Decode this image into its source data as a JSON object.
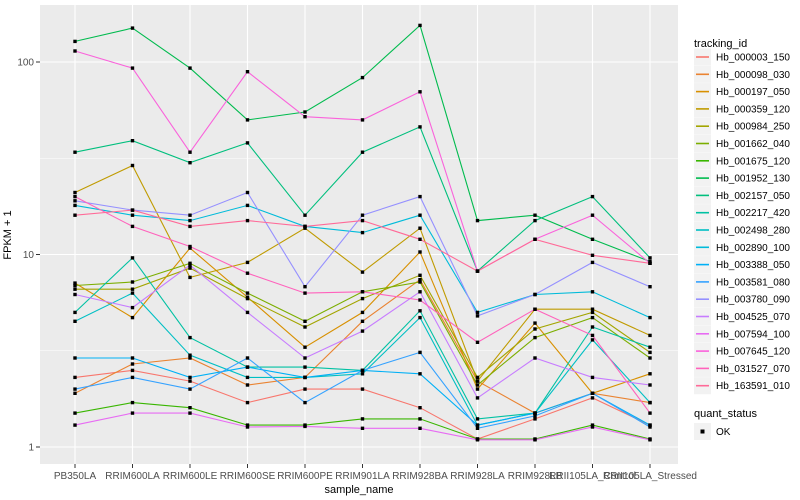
{
  "figure": {
    "background": "#FFFFFF",
    "panel_background": "#EBEBEB",
    "grid_color": "#FFFFFF",
    "axis_text_color": "#4D4D4D",
    "marker_color": "#000000",
    "legend_key_background": "#F2F2F2"
  },
  "axes": {
    "x_title": "sample_name",
    "y_title": "FPKM + 1",
    "y_tick_labels": [
      "1",
      "10",
      "100"
    ]
  },
  "legend": {
    "tracking_title": "tracking_id",
    "quant_title": "quant_status",
    "quant_ok_label": "OK"
  },
  "chart_data": {
    "type": "line",
    "y_scale": "log10",
    "ylim": [
      0.82,
      197
    ],
    "y_ticks": [
      1,
      10,
      100
    ],
    "y_minor_ticks": [
      3.162,
      31.62
    ],
    "grid": true,
    "legend_position": "right",
    "title": "",
    "xlabel": "sample_name",
    "ylabel": "FPKM + 1",
    "categories": [
      "PB350LA",
      "RRIM600LA",
      "RRIM600LE",
      "RRIM600SE",
      "RRIM600PE",
      "RRIM901LA",
      "RRIM928BA",
      "RRIM928LA",
      "RRIM928LB",
      "RRII105LA_Control",
      "RRII105LA_Stressed"
    ],
    "quant_status": "OK",
    "series": [
      {
        "name": "Hb_000003_150",
        "color": "#F8766D",
        "values": [
          2.3,
          2.5,
          2.2,
          1.7,
          2.0,
          2.0,
          1.6,
          1.1,
          1.4,
          1.8,
          1.3
        ]
      },
      {
        "name": "Hb_000098_030",
        "color": "#EA8331",
        "values": [
          1.9,
          2.7,
          2.9,
          2.1,
          2.3,
          4.5,
          7.4,
          2.2,
          1.5,
          1.9,
          1.7
        ]
      },
      {
        "name": "Hb_000197_050",
        "color": "#D89000",
        "values": [
          7.1,
          4.7,
          10.8,
          6.0,
          3.3,
          5.0,
          10.3,
          2.0,
          4.4,
          1.9,
          2.4
        ]
      },
      {
        "name": "Hb_000359_120",
        "color": "#C09B00",
        "values": [
          21,
          29,
          7.6,
          9.1,
          13.7,
          8.1,
          13.7,
          2.2,
          5.2,
          5.2,
          3.8
        ]
      },
      {
        "name": "Hb_000984_250",
        "color": "#A3A500",
        "values": [
          6.6,
          6.6,
          8.5,
          5.9,
          4.2,
          5.9,
          7.8,
          2.3,
          4.1,
          5.0,
          3.1
        ]
      },
      {
        "name": "Hb_001662_040",
        "color": "#7CAE00",
        "values": [
          6.9,
          7.2,
          9.0,
          6.3,
          4.5,
          6.4,
          7.2,
          2.1,
          3.7,
          4.7,
          2.9
        ]
      },
      {
        "name": "Hb_001675_120",
        "color": "#39B600",
        "values": [
          1.5,
          1.7,
          1.6,
          1.3,
          1.3,
          1.4,
          1.4,
          1.1,
          1.1,
          1.3,
          1.1
        ]
      },
      {
        "name": "Hb_001952_130",
        "color": "#00BB4E",
        "values": [
          128,
          150,
          93,
          50,
          55,
          83,
          155,
          15,
          16,
          12,
          9.2
        ]
      },
      {
        "name": "Hb_002157_050",
        "color": "#00BF7D",
        "values": [
          34,
          39,
          30,
          38,
          16,
          34,
          46,
          8.2,
          15,
          20,
          9.6
        ]
      },
      {
        "name": "Hb_002217_420",
        "color": "#00C1A3",
        "values": [
          5.0,
          9.6,
          3.7,
          2.6,
          2.6,
          2.5,
          5.1,
          1.4,
          1.5,
          4.2,
          3.3
        ]
      },
      {
        "name": "Hb_002498_280",
        "color": "#00BFC4",
        "values": [
          4.5,
          6.3,
          3.0,
          2.3,
          2.3,
          2.4,
          4.7,
          1.3,
          1.5,
          3.6,
          1.7
        ]
      },
      {
        "name": "Hb_002890_100",
        "color": "#00BBDA",
        "values": [
          18,
          16,
          15,
          18,
          14,
          13,
          16,
          5.0,
          6.2,
          6.4,
          4.7
        ]
      },
      {
        "name": "Hb_003388_050",
        "color": "#00B0F6",
        "values": [
          2.9,
          2.9,
          2.3,
          2.6,
          2.3,
          2.5,
          2.4,
          1.3,
          1.5,
          1.9,
          1.3
        ]
      },
      {
        "name": "Hb_003581_080",
        "color": "#35A2FF",
        "values": [
          2.0,
          2.3,
          2.0,
          2.9,
          1.7,
          2.5,
          3.1,
          1.25,
          1.45,
          1.9,
          1.27
        ]
      },
      {
        "name": "Hb_003780_090",
        "color": "#9590FF",
        "values": [
          19,
          17,
          16,
          21,
          6.8,
          16,
          20,
          4.8,
          6.2,
          9.1,
          6.8
        ]
      },
      {
        "name": "Hb_004525_070",
        "color": "#C77CFF",
        "values": [
          6.2,
          5.3,
          8.8,
          5.0,
          2.9,
          4.0,
          6.4,
          1.8,
          2.9,
          2.3,
          2.1
        ]
      },
      {
        "name": "Hb_007594_100",
        "color": "#E76BF3",
        "values": [
          1.3,
          1.5,
          1.5,
          1.27,
          1.28,
          1.25,
          1.25,
          1.09,
          1.09,
          1.27,
          1.09
        ]
      },
      {
        "name": "Hb_007645_120",
        "color": "#FA62DB",
        "values": [
          114,
          93,
          34,
          89,
          52,
          50,
          70,
          8.2,
          12,
          16,
          9.0
        ]
      },
      {
        "name": "Hb_031527_070",
        "color": "#FF62BC",
        "values": [
          20,
          14,
          11,
          8.0,
          6.3,
          6.4,
          5.8,
          3.5,
          5.2,
          3.8,
          1.5
        ]
      },
      {
        "name": "Hb_163591_010",
        "color": "#FF6A98",
        "values": [
          16,
          17,
          14,
          15,
          14,
          15,
          12,
          8.2,
          12,
          9.9,
          9.0
        ]
      }
    ]
  }
}
